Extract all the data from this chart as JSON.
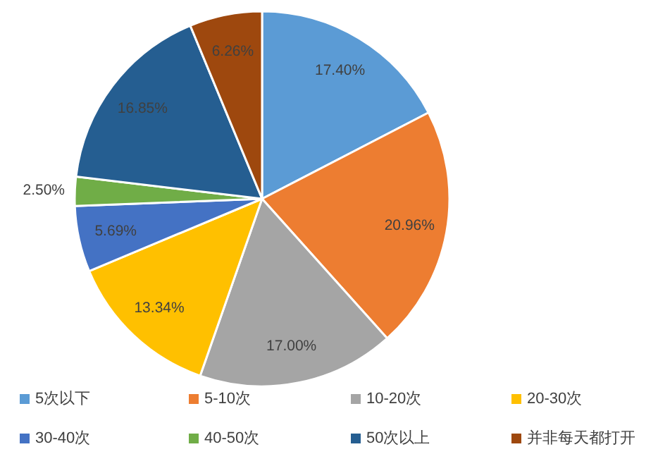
{
  "chart_data": {
    "type": "pie",
    "categories": [
      "5次以下",
      "5-10次",
      "10-20次",
      "20-30次",
      "30-40次",
      "40-50次",
      "50次以上",
      "并非每天都打开"
    ],
    "values": [
      17.4,
      20.96,
      17.0,
      13.34,
      5.69,
      2.5,
      16.85,
      6.26
    ],
    "colors": [
      "#5b9bd5",
      "#ed7d31",
      "#a5a5a5",
      "#ffc000",
      "#4472c4",
      "#70ad47",
      "#255e91",
      "#9e480e"
    ],
    "value_labels": [
      "17.40%",
      "20.96%",
      "17.00%",
      "13.34%",
      "5.69%",
      "2.50%",
      "16.85%",
      "6.26%"
    ],
    "legend": "bottom"
  }
}
